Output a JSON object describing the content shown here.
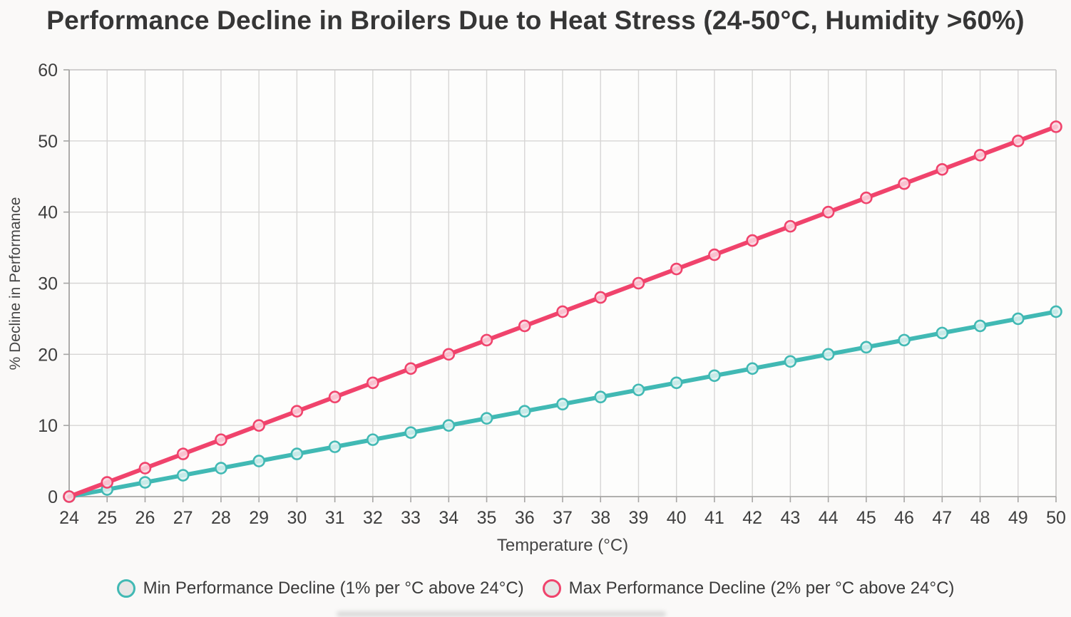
{
  "title": "Performance Decline in Broilers Due to Heat Stress (24-50°C, Humidity >60%)",
  "chart_data": {
    "type": "line",
    "x": [
      24,
      25,
      26,
      27,
      28,
      29,
      30,
      31,
      32,
      33,
      34,
      35,
      36,
      37,
      38,
      39,
      40,
      41,
      42,
      43,
      44,
      45,
      46,
      47,
      48,
      49,
      50
    ],
    "series": [
      {
        "name": "Min Performance Decline (1% per °C above 24°C)",
        "color": "#41b9b4",
        "marker_fill": "#dff2f1",
        "values": [
          0,
          1,
          2,
          3,
          4,
          5,
          6,
          7,
          8,
          9,
          10,
          11,
          12,
          13,
          14,
          15,
          16,
          17,
          18,
          19,
          20,
          21,
          22,
          23,
          24,
          25,
          26
        ]
      },
      {
        "name": "Max Performance Decline (2% per °C above 24°C)",
        "color": "#f0436c",
        "marker_fill": "#fad7e0",
        "values": [
          0,
          2,
          4,
          6,
          8,
          10,
          12,
          14,
          16,
          18,
          20,
          22,
          24,
          26,
          28,
          30,
          32,
          34,
          36,
          38,
          40,
          42,
          44,
          46,
          48,
          50,
          52
        ]
      }
    ],
    "xlabel": "Temperature (°C)",
    "ylabel": "% Decline in Performance",
    "xlim": [
      24,
      50
    ],
    "ylim": [
      0,
      60
    ],
    "y_ticks": [
      0,
      10,
      20,
      30,
      40,
      50,
      60
    ],
    "grid": true,
    "legend_position": "bottom"
  },
  "colors": {
    "grid_line": "#d7d6d5",
    "axis_line": "#a6a5a4",
    "plot_border": "#c9c8c7",
    "plot_background": "#fdfdfc",
    "tick_text": "#3f3f3f",
    "legend_marker_fill": "#e6e6e6"
  }
}
